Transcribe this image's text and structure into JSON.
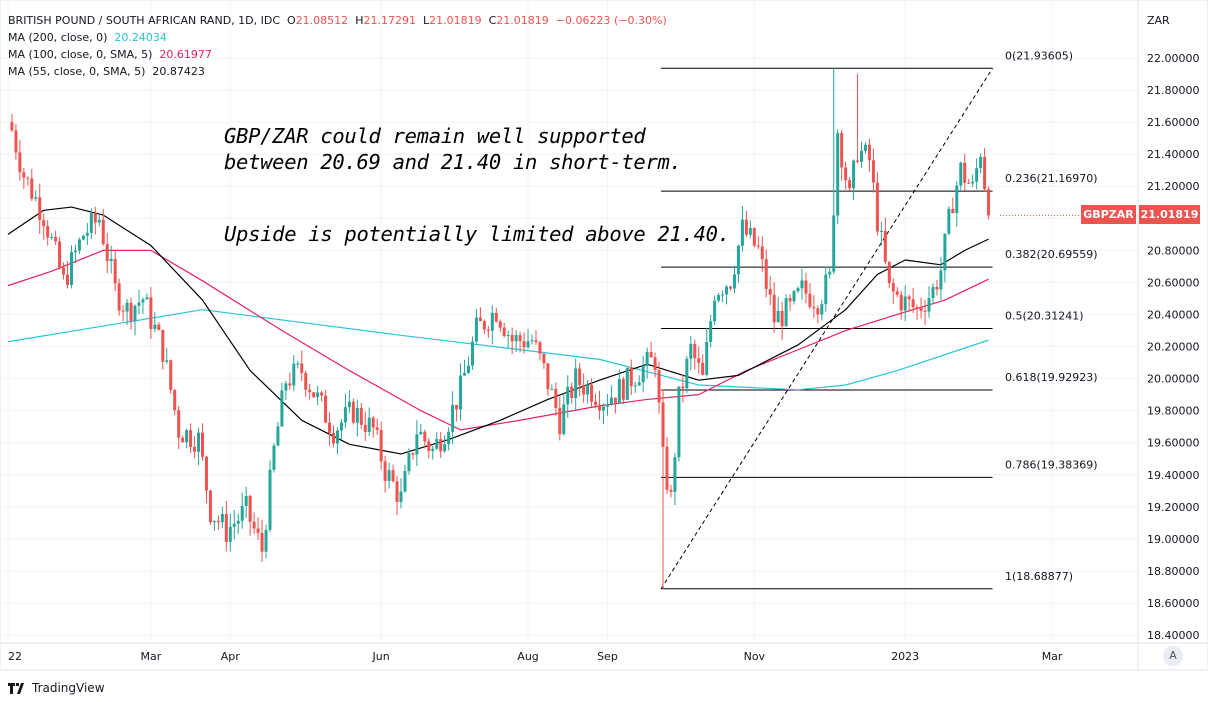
{
  "header": {
    "symbol": "BRITISH POUND / SOUTH AFRICAN RAND, 1D, IDC",
    "o_label": "O",
    "o": "21.08512",
    "h_label": "H",
    "h": "21.17291",
    "l_label": "L",
    "l": "21.01819",
    "c_label": "C",
    "c": "21.01819",
    "change": "−0.06223 (−0.30%)"
  },
  "indicators": [
    {
      "label": "MA (200, close, 0)",
      "value": "20.24034",
      "color": "#26c6da"
    },
    {
      "label": "MA (100, close, 0, SMA, 5)",
      "value": "20.61977",
      "color": "#e91e63"
    },
    {
      "label": "MA (55, close, 0, SMA, 5)",
      "value": "20.87423",
      "color": "#000000"
    }
  ],
  "annotations": [
    "GBP/ZAR could remain well supported",
    "between 20.69 and 21.40 in short-term.",
    "Upside is potentially limited above 21.40."
  ],
  "price_tag": {
    "symbol": "GBPZAR",
    "value": "21.01819",
    "color": "#ef5350"
  },
  "axis_currency": "ZAR",
  "auto_button": "A",
  "brand": "TradingView",
  "colors": {
    "up": "#26a69a",
    "down": "#ef5350"
  },
  "chart_data": {
    "type": "candlestick",
    "title": "BRITISH POUND / SOUTH AFRICAN RAND, 1D",
    "ylim": [
      18.4,
      22.0
    ],
    "y_ticks": [
      "22.00000",
      "21.80000",
      "21.60000",
      "21.40000",
      "21.20000",
      "21.00000",
      "20.80000",
      "20.60000",
      "20.40000",
      "20.20000",
      "20.00000",
      "19.80000",
      "19.60000",
      "19.40000",
      "19.20000",
      "19.00000",
      "18.80000",
      "18.60000",
      "18.40000"
    ],
    "x_ticks": [
      {
        "label": "22",
        "day": 1
      },
      {
        "label": "Mar",
        "day": 37
      },
      {
        "label": "Apr",
        "day": 57
      },
      {
        "label": "Jun",
        "day": 95
      },
      {
        "label": "Aug",
        "day": 132
      },
      {
        "label": "Sep",
        "day": 152
      },
      {
        "label": "Nov",
        "day": 189
      },
      {
        "label": "2023",
        "day": 227
      },
      {
        "label": "Mar",
        "day": 264
      }
    ],
    "close_anchors": [
      [
        2,
        21.55
      ],
      [
        5,
        21.27
      ],
      [
        10,
        21.02
      ],
      [
        15,
        20.6
      ],
      [
        20,
        20.9
      ],
      [
        24,
        21.0
      ],
      [
        28,
        20.55
      ],
      [
        31,
        20.43
      ],
      [
        35,
        20.5
      ],
      [
        40,
        20.18
      ],
      [
        44,
        19.68
      ],
      [
        49,
        19.62
      ],
      [
        52,
        19.18
      ],
      [
        56,
        19.05
      ],
      [
        61,
        19.18
      ],
      [
        65,
        18.93
      ],
      [
        68,
        19.55
      ],
      [
        71,
        19.99
      ],
      [
        75,
        20.05
      ],
      [
        79,
        19.87
      ],
      [
        83,
        19.68
      ],
      [
        88,
        19.8
      ],
      [
        93,
        19.68
      ],
      [
        96,
        19.43
      ],
      [
        100,
        19.25
      ],
      [
        104,
        19.68
      ],
      [
        108,
        19.55
      ],
      [
        111,
        19.68
      ],
      [
        115,
        19.93
      ],
      [
        119,
        20.3
      ],
      [
        124,
        20.43
      ],
      [
        128,
        20.24
      ],
      [
        133,
        20.24
      ],
      [
        136,
        20.05
      ],
      [
        140,
        19.74
      ],
      [
        144,
        19.99
      ],
      [
        148,
        19.93
      ],
      [
        151,
        19.87
      ],
      [
        155,
        19.93
      ],
      [
        160,
        20.05
      ],
      [
        164,
        20.12
      ],
      [
        166,
        19.49
      ],
      [
        168,
        19.24
      ],
      [
        170,
        19.87
      ],
      [
        173,
        20.18
      ],
      [
        176,
        19.99
      ],
      [
        179,
        20.55
      ],
      [
        183,
        20.62
      ],
      [
        186,
        20.93
      ],
      [
        190,
        20.8
      ],
      [
        194,
        20.37
      ],
      [
        198,
        20.43
      ],
      [
        201,
        20.55
      ],
      [
        205,
        20.49
      ],
      [
        208,
        20.62
      ],
      [
        210,
        21.55
      ],
      [
        213,
        21.12
      ],
      [
        215,
        21.43
      ],
      [
        218,
        21.36
      ],
      [
        220,
        20.99
      ],
      [
        223,
        20.55
      ],
      [
        226,
        20.49
      ],
      [
        230,
        20.43
      ],
      [
        234,
        20.55
      ],
      [
        236,
        20.68
      ],
      [
        239,
        21.12
      ],
      [
        241,
        21.3
      ],
      [
        244,
        21.18
      ],
      [
        246,
        21.43
      ],
      [
        248,
        21.02
      ]
    ],
    "extremes": [
      [
        166,
        "low",
        18.689
      ],
      [
        209,
        "high",
        21.936
      ],
      [
        215,
        "high",
        21.9
      ]
    ],
    "ma200": [
      [
        1,
        20.23
      ],
      [
        50,
        20.43
      ],
      [
        100,
        20.27
      ],
      [
        150,
        20.12
      ],
      [
        175,
        19.96
      ],
      [
        200,
        19.93
      ],
      [
        212,
        19.96
      ],
      [
        225,
        20.05
      ],
      [
        248,
        20.24
      ]
    ],
    "ma100": [
      [
        1,
        20.58
      ],
      [
        12,
        20.67
      ],
      [
        25,
        20.8
      ],
      [
        37,
        20.8
      ],
      [
        50,
        20.61
      ],
      [
        70,
        20.3
      ],
      [
        87,
        20.05
      ],
      [
        105,
        19.8
      ],
      [
        115,
        19.68
      ],
      [
        130,
        19.74
      ],
      [
        150,
        19.83
      ],
      [
        162,
        19.87
      ],
      [
        175,
        19.9
      ],
      [
        187,
        20.05
      ],
      [
        200,
        20.18
      ],
      [
        212,
        20.3
      ],
      [
        225,
        20.4
      ],
      [
        237,
        20.49
      ],
      [
        248,
        20.62
      ]
    ],
    "ma55": [
      [
        1,
        20.9
      ],
      [
        10,
        21.05
      ],
      [
        17,
        21.07
      ],
      [
        25,
        21.02
      ],
      [
        37,
        20.83
      ],
      [
        50,
        20.49
      ],
      [
        62,
        20.05
      ],
      [
        75,
        19.74
      ],
      [
        87,
        19.59
      ],
      [
        100,
        19.53
      ],
      [
        112,
        19.62
      ],
      [
        125,
        19.74
      ],
      [
        137,
        19.87
      ],
      [
        150,
        19.99
      ],
      [
        162,
        20.09
      ],
      [
        175,
        19.99
      ],
      [
        185,
        20.02
      ],
      [
        200,
        20.21
      ],
      [
        212,
        20.43
      ],
      [
        220,
        20.65
      ],
      [
        227,
        20.74
      ],
      [
        236,
        20.71
      ],
      [
        242,
        20.8
      ],
      [
        248,
        20.87
      ]
    ],
    "fibonacci": {
      "from_day": 164,
      "to_day": 249,
      "levels": [
        {
          "ratio": "0",
          "price": 21.93605,
          "label": "0(21.93605)"
        },
        {
          "ratio": "0.236",
          "price": 21.1697,
          "label": "0.236(21.16970)"
        },
        {
          "ratio": "0.382",
          "price": 20.69559,
          "label": "0.382(20.69559)"
        },
        {
          "ratio": "0.5",
          "price": 20.31241,
          "label": "0.5(20.31241)"
        },
        {
          "ratio": "0.618",
          "price": 19.92923,
          "label": "0.618(19.92923)"
        },
        {
          "ratio": "0.786",
          "price": 19.38369,
          "label": "0.786(19.38369)"
        },
        {
          "ratio": "1",
          "price": 18.68877,
          "label": "1(18.68877)"
        }
      ]
    },
    "last_price": 21.01819
  }
}
